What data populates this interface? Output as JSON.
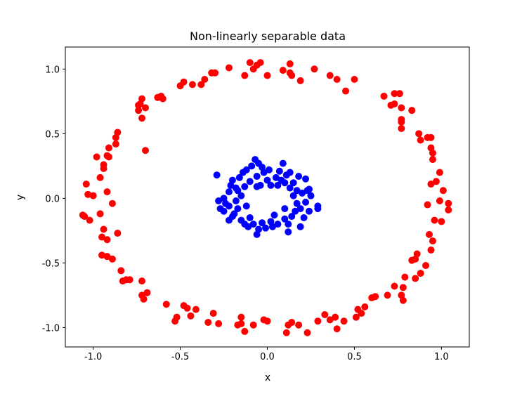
{
  "chart_data": {
    "type": "scatter",
    "title": "Non-linearly separable data",
    "xlabel": "x",
    "ylabel": "y",
    "xlim": [
      -1.16,
      1.16
    ],
    "ylim": [
      -1.15,
      1.17
    ],
    "xticks": [
      "-1.0",
      "-0.5",
      "0.0",
      "0.5",
      "1.0"
    ],
    "yticks": [
      "-1.0",
      "-0.5",
      "0.0",
      "0.5",
      "1.0"
    ],
    "grid": false,
    "series": [
      {
        "color": "#ff0000",
        "points": [
          [
            -0.22,
            1.01
          ],
          [
            -0.1,
            1.05
          ],
          [
            -0.08,
            1.0
          ],
          [
            -0.06,
            1.03
          ],
          [
            -0.04,
            1.05
          ],
          [
            -0.13,
            0.95
          ],
          [
            0.0,
            0.95
          ],
          [
            0.09,
            0.99
          ],
          [
            0.13,
            1.04
          ],
          [
            0.13,
            0.97
          ],
          [
            0.14,
            0.95
          ],
          [
            0.19,
            0.91
          ],
          [
            0.27,
            1.0
          ],
          [
            0.36,
            0.95
          ],
          [
            0.4,
            0.92
          ],
          [
            0.45,
            0.83
          ],
          [
            0.5,
            0.92
          ],
          [
            0.67,
            0.79
          ],
          [
            0.73,
            0.81
          ],
          [
            0.73,
            0.73
          ],
          [
            0.71,
            0.72
          ],
          [
            0.76,
            0.81
          ],
          [
            0.77,
            0.7
          ],
          [
            0.77,
            0.59
          ],
          [
            0.77,
            0.61
          ],
          [
            0.77,
            0.54
          ],
          [
            0.83,
            0.68
          ],
          [
            0.87,
            0.5
          ],
          [
            0.88,
            0.45
          ],
          [
            0.92,
            0.47
          ],
          [
            0.94,
            0.47
          ],
          [
            0.94,
            0.39
          ],
          [
            0.95,
            0.35
          ],
          [
            0.95,
            0.3
          ],
          [
            0.99,
            0.2
          ],
          [
            0.97,
            0.13
          ],
          [
            0.94,
            0.11
          ],
          [
            1.01,
            0.06
          ],
          [
            1.04,
            -0.04
          ],
          [
            0.99,
            -0.02
          ],
          [
            0.92,
            -0.05
          ],
          [
            1.04,
            -0.09
          ],
          [
            0.96,
            -0.17
          ],
          [
            1.0,
            -0.18
          ],
          [
            0.93,
            -0.28
          ],
          [
            0.95,
            -0.33
          ],
          [
            0.94,
            -0.4
          ],
          [
            0.91,
            -0.52
          ],
          [
            0.86,
            -0.43
          ],
          [
            0.85,
            -0.47
          ],
          [
            0.83,
            -0.48
          ],
          [
            0.88,
            -0.58
          ],
          [
            0.85,
            -0.62
          ],
          [
            0.79,
            -0.61
          ],
          [
            0.78,
            -0.69
          ],
          [
            0.77,
            -0.75
          ],
          [
            0.78,
            -0.79
          ],
          [
            0.73,
            -0.68
          ],
          [
            0.69,
            -0.75
          ],
          [
            0.62,
            -0.76
          ],
          [
            0.6,
            -0.77
          ],
          [
            0.54,
            -0.89
          ],
          [
            0.56,
            -0.84
          ],
          [
            0.52,
            -0.86
          ],
          [
            0.51,
            -0.92
          ],
          [
            0.44,
            -0.95
          ],
          [
            0.4,
            -1.01
          ],
          [
            0.39,
            -0.92
          ],
          [
            0.33,
            -0.9
          ],
          [
            0.36,
            -0.94
          ],
          [
            0.29,
            -0.95
          ],
          [
            0.18,
            -0.98
          ],
          [
            0.14,
            -0.96
          ],
          [
            0.12,
            -0.98
          ],
          [
            0.11,
            -1.04
          ],
          [
            0.23,
            -1.04
          ],
          [
            0.0,
            -0.95
          ],
          [
            -0.02,
            -0.94
          ],
          [
            -0.08,
            -0.98
          ],
          [
            -0.13,
            -1.03
          ],
          [
            -0.15,
            -0.97
          ],
          [
            -0.17,
            -0.98
          ],
          [
            -0.15,
            -0.92
          ],
          [
            -0.28,
            -0.97
          ],
          [
            -0.31,
            -0.89
          ],
          [
            -0.34,
            -0.96
          ],
          [
            -0.41,
            -0.86
          ],
          [
            -0.44,
            -0.91
          ],
          [
            -0.46,
            -0.85
          ],
          [
            -0.48,
            -0.83
          ],
          [
            -0.52,
            -0.92
          ],
          [
            -0.53,
            -0.95
          ],
          [
            -0.58,
            -0.82
          ],
          [
            -0.69,
            -0.73
          ],
          [
            -0.72,
            -0.75
          ],
          [
            -0.71,
            -0.78
          ],
          [
            -0.72,
            -0.64
          ],
          [
            -0.79,
            -0.63
          ],
          [
            -0.81,
            -0.63
          ],
          [
            -0.83,
            -0.64
          ],
          [
            -0.84,
            -0.56
          ],
          [
            -0.89,
            -0.47
          ],
          [
            -0.92,
            -0.45
          ],
          [
            -0.95,
            -0.44
          ],
          [
            -0.92,
            -0.32
          ],
          [
            -0.94,
            -0.24
          ],
          [
            -0.95,
            -0.3
          ],
          [
            -0.86,
            -0.27
          ],
          [
            -0.96,
            -0.12
          ],
          [
            -1.02,
            -0.17
          ],
          [
            -1.05,
            -0.14
          ],
          [
            -1.06,
            -0.13
          ],
          [
            -0.89,
            -0.04
          ],
          [
            -0.92,
            0.05
          ],
          [
            -1.0,
            0.02
          ],
          [
            -1.03,
            0.03
          ],
          [
            -1.04,
            0.11
          ],
          [
            -0.96,
            0.16
          ],
          [
            -0.94,
            0.23
          ],
          [
            -0.94,
            0.26
          ],
          [
            -0.91,
            0.32
          ],
          [
            -0.92,
            0.33
          ],
          [
            -0.98,
            0.32
          ],
          [
            -0.91,
            0.39
          ],
          [
            -0.87,
            0.42
          ],
          [
            -0.87,
            0.47
          ],
          [
            -0.86,
            0.51
          ],
          [
            -0.7,
            0.37
          ],
          [
            -0.72,
            0.62
          ],
          [
            -0.7,
            0.7
          ],
          [
            -0.73,
            0.73
          ],
          [
            -0.72,
            0.77
          ],
          [
            -0.74,
            0.72
          ],
          [
            -0.74,
            0.68
          ],
          [
            -0.63,
            0.78
          ],
          [
            -0.6,
            0.77
          ],
          [
            -0.61,
            0.79
          ],
          [
            -0.5,
            0.87
          ],
          [
            -0.48,
            0.9
          ],
          [
            -0.43,
            0.88
          ],
          [
            -0.38,
            0.88
          ],
          [
            -0.36,
            0.92
          ],
          [
            -0.32,
            0.97
          ],
          [
            -0.3,
            0.97
          ]
        ]
      },
      {
        "color": "#0000ff",
        "points": [
          [
            -0.29,
            0.18
          ],
          [
            -0.28,
            -0.02
          ],
          [
            -0.27,
            -0.08
          ],
          [
            -0.25,
            -0.1
          ],
          [
            -0.24,
            -0.04
          ],
          [
            -0.22,
            -0.06
          ],
          [
            -0.22,
            0.05
          ],
          [
            -0.21,
            0.1
          ],
          [
            -0.2,
            0.14
          ],
          [
            -0.19,
            -0.12
          ],
          [
            -0.22,
            -0.17
          ],
          [
            -0.18,
            -0.02
          ],
          [
            -0.17,
            0.06
          ],
          [
            -0.17,
            -0.08
          ],
          [
            -0.16,
            0.16
          ],
          [
            -0.15,
            0.02
          ],
          [
            -0.15,
            -0.17
          ],
          [
            -0.14,
            0.2
          ],
          [
            -0.13,
            0.09
          ],
          [
            -0.12,
            -0.06
          ],
          [
            -0.12,
            0.22
          ],
          [
            -0.11,
            -0.22
          ],
          [
            -0.1,
            -0.15
          ],
          [
            -0.1,
            0.13
          ],
          [
            -0.09,
            0.25
          ],
          [
            -0.08,
            -0.2
          ],
          [
            -0.07,
            0.3
          ],
          [
            -0.06,
            -0.28
          ],
          [
            -0.06,
            0.17
          ],
          [
            -0.05,
            0.27
          ],
          [
            -0.05,
            -0.24
          ],
          [
            -0.04,
            0.1
          ],
          [
            -0.03,
            0.24
          ],
          [
            -0.03,
            -0.19
          ],
          [
            -0.02,
            0.2
          ],
          [
            -0.01,
            -0.23
          ],
          [
            0.0,
            0.14
          ],
          [
            0.01,
            0.22
          ],
          [
            0.02,
            -0.18
          ],
          [
            0.02,
            0.1
          ],
          [
            0.03,
            -0.22
          ],
          [
            0.05,
            0.16
          ],
          [
            0.06,
            -0.2
          ],
          [
            0.07,
            0.21
          ],
          [
            0.08,
            0.14
          ],
          [
            0.09,
            0.27
          ],
          [
            0.1,
            -0.08
          ],
          [
            0.1,
            -0.16
          ],
          [
            0.11,
            0.18
          ],
          [
            0.12,
            -0.2
          ],
          [
            0.12,
            -0.26
          ],
          [
            0.13,
            0.08
          ],
          [
            0.13,
            0.2
          ],
          [
            0.14,
            -0.14
          ],
          [
            0.15,
            0.02
          ],
          [
            0.15,
            0.12
          ],
          [
            0.16,
            -0.1
          ],
          [
            0.17,
            0.06
          ],
          [
            0.17,
            -0.04
          ],
          [
            0.18,
            0.17
          ],
          [
            0.19,
            -0.08
          ],
          [
            0.19,
            -0.22
          ],
          [
            0.2,
            0.04
          ],
          [
            0.21,
            -0.15
          ],
          [
            0.22,
            0.15
          ],
          [
            0.22,
            -0.03
          ],
          [
            0.23,
            0.06
          ],
          [
            0.24,
            -0.1
          ],
          [
            0.25,
            0.02
          ],
          [
            0.29,
            -0.06
          ],
          [
            0.29,
            -0.08
          ],
          [
            -0.25,
            0.0
          ],
          [
            -0.18,
            0.08
          ],
          [
            -0.2,
            -0.14
          ],
          [
            0.06,
            0.1
          ],
          [
            -0.06,
            0.09
          ],
          [
            0.04,
            -0.13
          ],
          [
            0.1,
            0.12
          ],
          [
            -0.13,
            -0.2
          ],
          [
            0.24,
            0.07
          ]
        ]
      }
    ]
  }
}
